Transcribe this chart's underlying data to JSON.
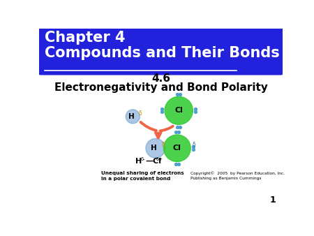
{
  "title_line1": "Chapter 4",
  "title_line2": "Compounds and Their Bonds",
  "subtitle_num": "4.6",
  "subtitle_text": "Electronegativity and Bond Polarity",
  "header_bg_color": "#2222dd",
  "header_text_color": "#ffffff",
  "body_bg_color": "#ffffff",
  "border_color": "#cc6600",
  "slide_number": "1",
  "caption_left": "Unequal sharing of electrons\nin a polar covalent bond",
  "caption_right": "Copyright©  2005  by Pearson Education, Inc.\nPublishing as Benjamin Cummings",
  "cl_color": "#33cc33",
  "h_color": "#6699cc",
  "electron_dot_color": "#4499cc",
  "arrow_color": "#ee6644"
}
